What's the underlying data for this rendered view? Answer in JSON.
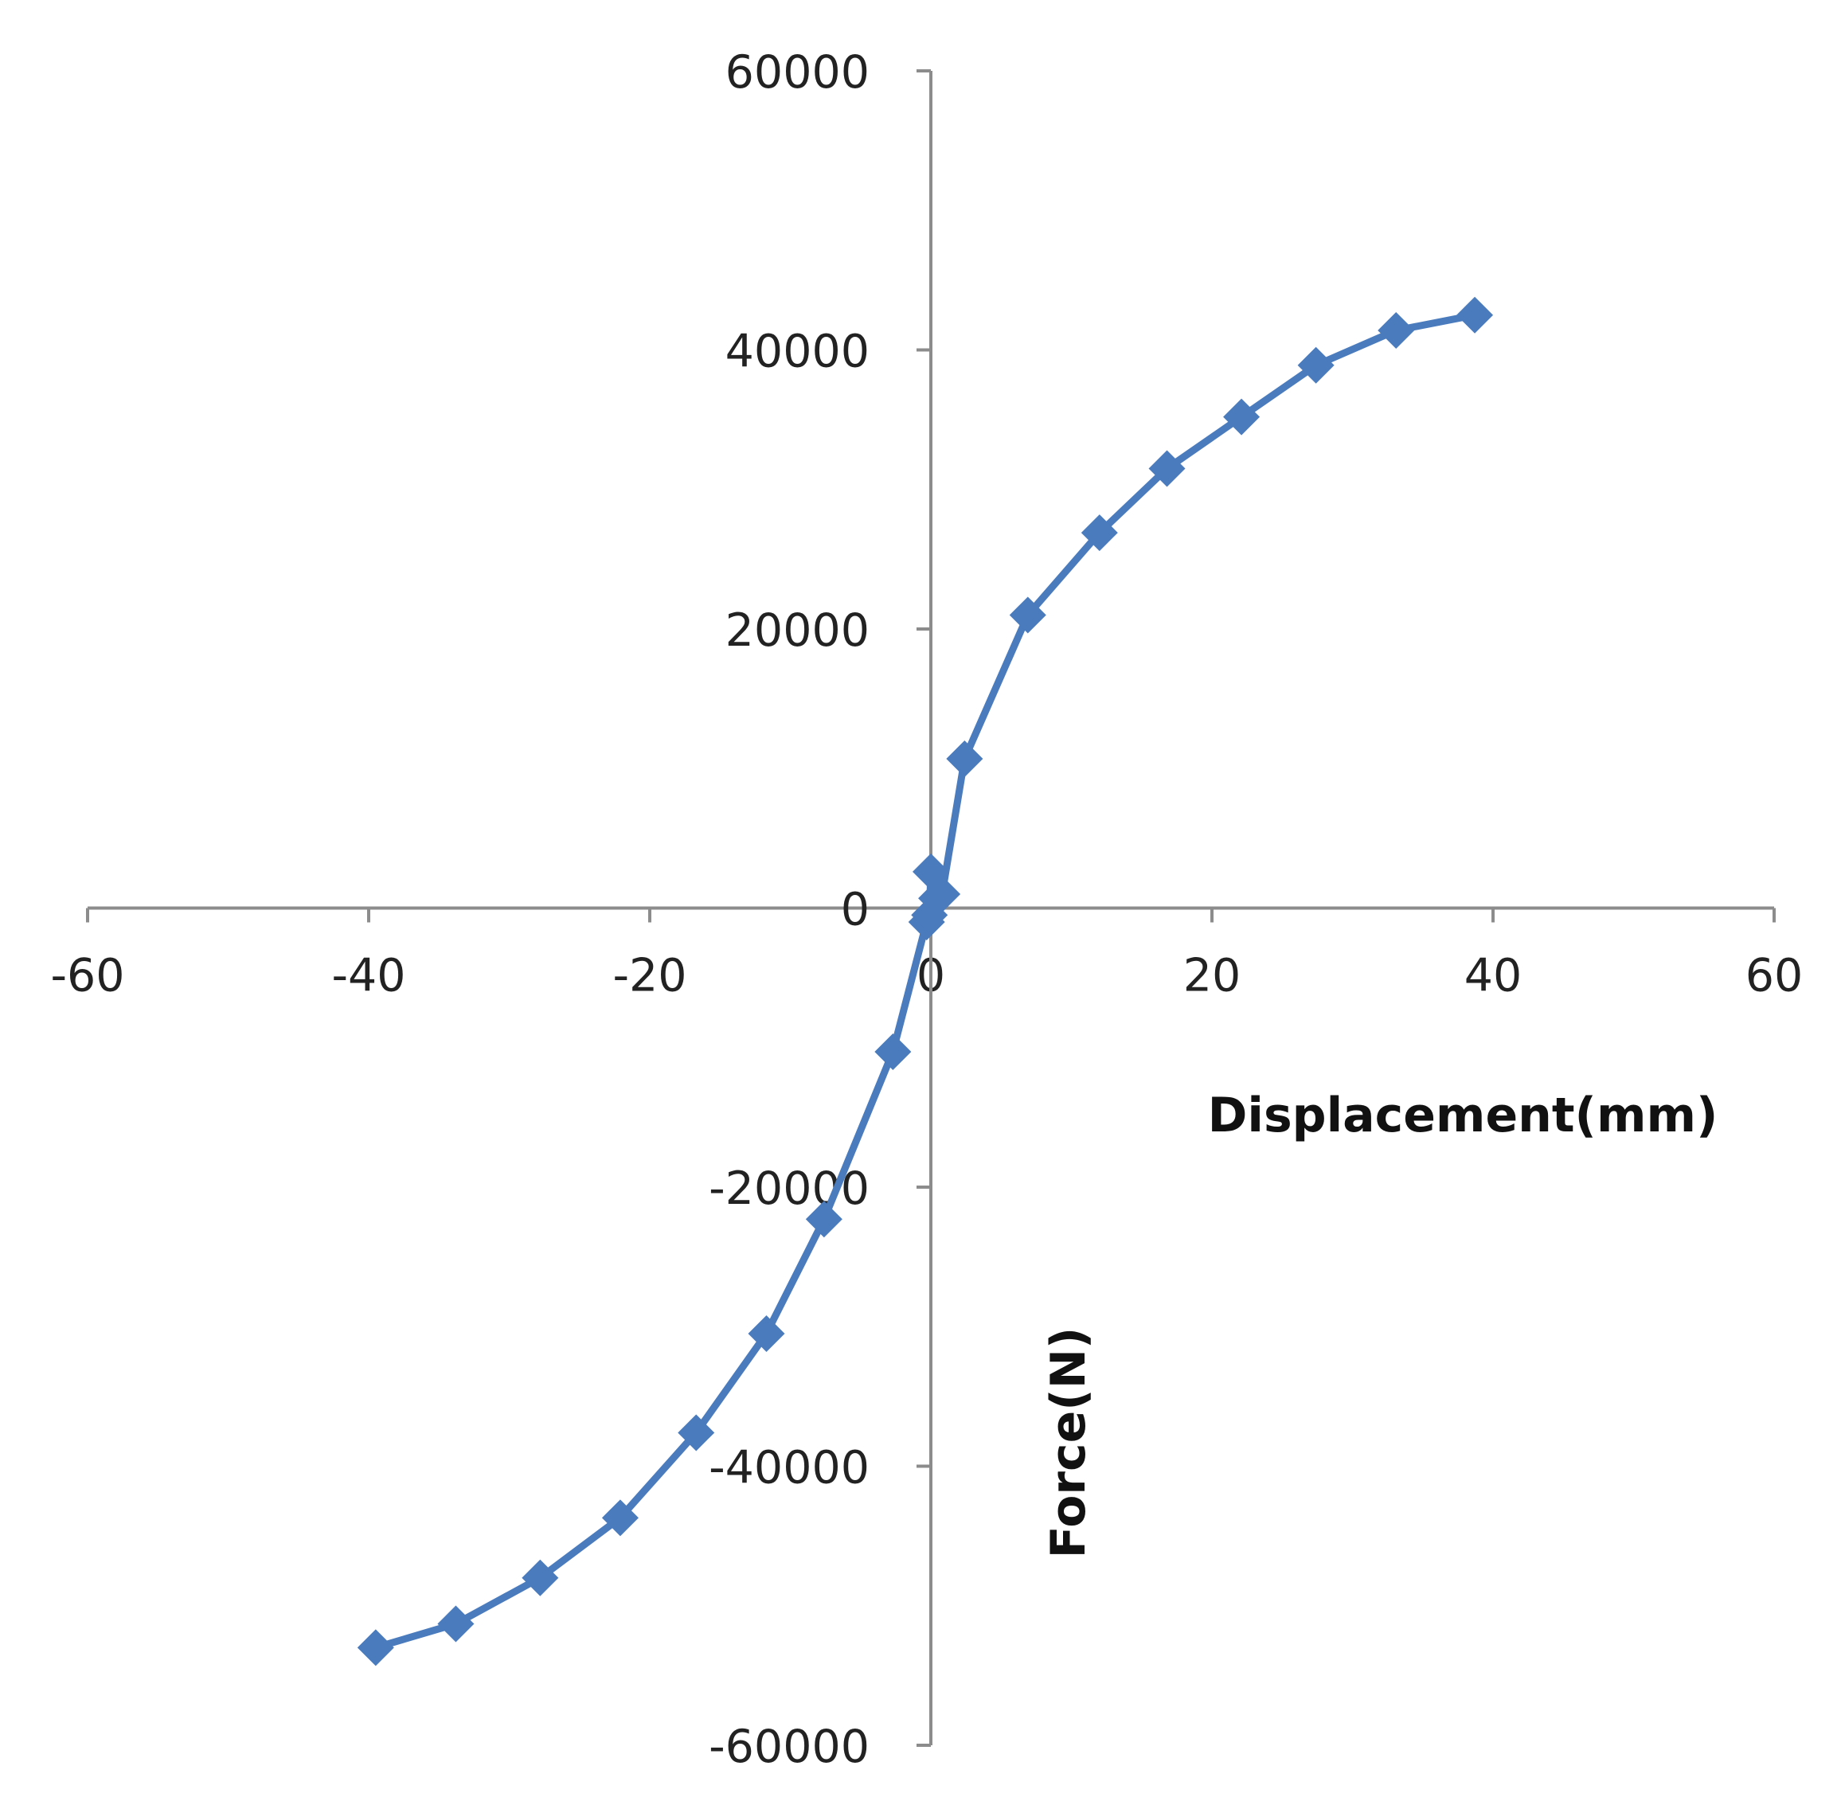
{
  "chart_data": {
    "type": "line",
    "xlabel": "Displacement(mm)",
    "ylabel": "Force(N)",
    "xlim": [
      -60,
      60
    ],
    "ylim": [
      -60000,
      60000
    ],
    "x_ticks": [
      -60,
      -40,
      -20,
      0,
      20,
      40,
      60
    ],
    "y_ticks": [
      -60000,
      -40000,
      -20000,
      0,
      20000,
      40000,
      60000
    ],
    "x_tick_labels": [
      "-60",
      "-40",
      "-20",
      "0",
      "20",
      "40",
      "60"
    ],
    "y_tick_labels": [
      "-60000",
      "-40000",
      "-20000",
      "0",
      "20000",
      "40000",
      "60000"
    ],
    "grid": false,
    "legend": "none",
    "series_color": "#4a7bbd",
    "marker": "diamond",
    "series": [
      {
        "x": [
          -39.5,
          -33.8,
          -27.8,
          -22.1,
          -16.7,
          -11.7,
          -7.6,
          -2.7,
          -0.3,
          -0.1,
          0.0,
          0.4,
          0.8,
          2.4,
          6.9,
          12.0,
          16.8,
          22.1,
          27.4,
          33.1,
          38.7
        ],
        "y": [
          -53000,
          -51300,
          -48000,
          -43700,
          -37600,
          -30500,
          -22300,
          -10300,
          -1000,
          -500,
          2600,
          700,
          1000,
          10700,
          21000,
          26900,
          31500,
          35200,
          38900,
          41400,
          42500
        ]
      }
    ]
  }
}
